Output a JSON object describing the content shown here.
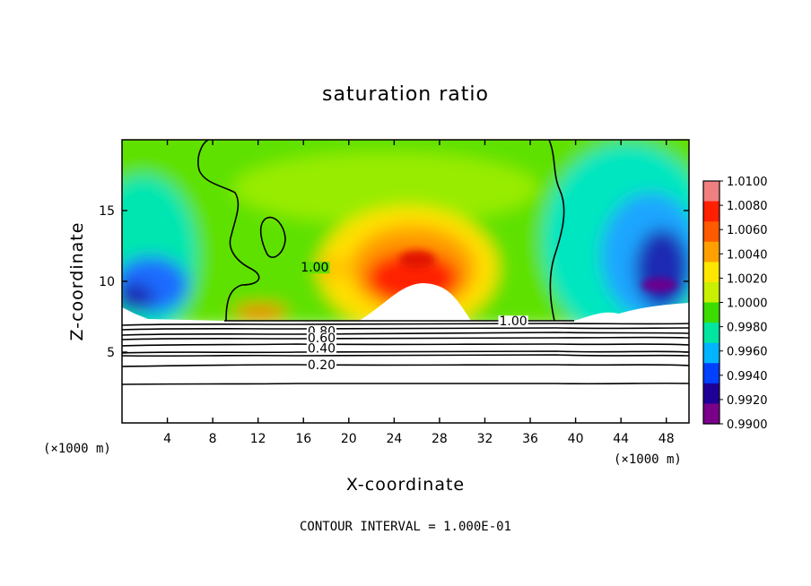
{
  "chart_data": {
    "type": "heatmap",
    "title": "saturation ratio",
    "xlabel": "X-coordinate",
    "ylabel": "Z-coordinate",
    "x_unit_label": "(×1000 m)",
    "x_unit_label_right": "(×1000 m)",
    "xlim": [
      0,
      50
    ],
    "ylim": [
      0,
      20
    ],
    "x_ticks": [
      4,
      8,
      12,
      16,
      20,
      24,
      28,
      32,
      36,
      40,
      44,
      48
    ],
    "y_ticks": [
      5,
      10,
      15
    ],
    "colorbar": {
      "ticks": [
        "1.0100",
        "1.0080",
        "1.0060",
        "1.0040",
        "1.0020",
        "1.0000",
        "0.9980",
        "0.9960",
        "0.9940",
        "0.9920",
        "0.9900"
      ],
      "colors": [
        "#f08080",
        "#ff2000",
        "#ff5a00",
        "#ffa000",
        "#ffe600",
        "#c8f000",
        "#3cdc00",
        "#00e6a0",
        "#00b4ff",
        "#0040ff",
        "#1e0096",
        "#7a008a"
      ]
    },
    "contour_labels": [
      {
        "text": "1.00",
        "x": 17.0,
        "z": 11.0
      },
      {
        "text": "1.00",
        "x": 34.5,
        "z": 7.2
      },
      {
        "text": "0.80",
        "x": 17.6,
        "z": 6.5
      },
      {
        "text": "0.60",
        "x": 17.6,
        "z": 6.0
      },
      {
        "text": "0.40",
        "x": 17.6,
        "z": 5.3
      },
      {
        "text": "0.20",
        "x": 17.6,
        "z": 4.1
      }
    ],
    "footnote": "CONTOUR INTERVAL = 1.000E-01"
  }
}
